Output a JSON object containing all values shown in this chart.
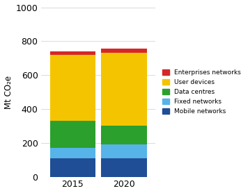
{
  "years": [
    "2015",
    "2020"
  ],
  "categories": [
    "Mobile networks",
    "Fixed networks",
    "Data centres",
    "User devices",
    "Enterprises networks"
  ],
  "values": [
    [
      110,
      60,
      160,
      390,
      20
    ],
    [
      110,
      80,
      110,
      430,
      25
    ]
  ],
  "colors": [
    "#1f4e96",
    "#56b4e9",
    "#2ca02c",
    "#f5c400",
    "#d62728"
  ],
  "ylabel": "Mt CO₂e",
  "ylim": [
    0,
    1000
  ],
  "yticks": [
    0,
    200,
    400,
    600,
    800,
    1000
  ],
  "legend_labels": [
    "Enterprises networks",
    "User devices",
    "Data centres",
    "Fixed networks",
    "Mobile networks"
  ],
  "legend_colors": [
    "#d62728",
    "#f5c400",
    "#2ca02c",
    "#56b4e9",
    "#1f4e96"
  ],
  "bar_width": 0.8,
  "bar_positions": [
    0,
    0.9
  ],
  "background_color": "#ffffff",
  "figsize": [
    3.56,
    2.78
  ],
  "dpi": 100
}
